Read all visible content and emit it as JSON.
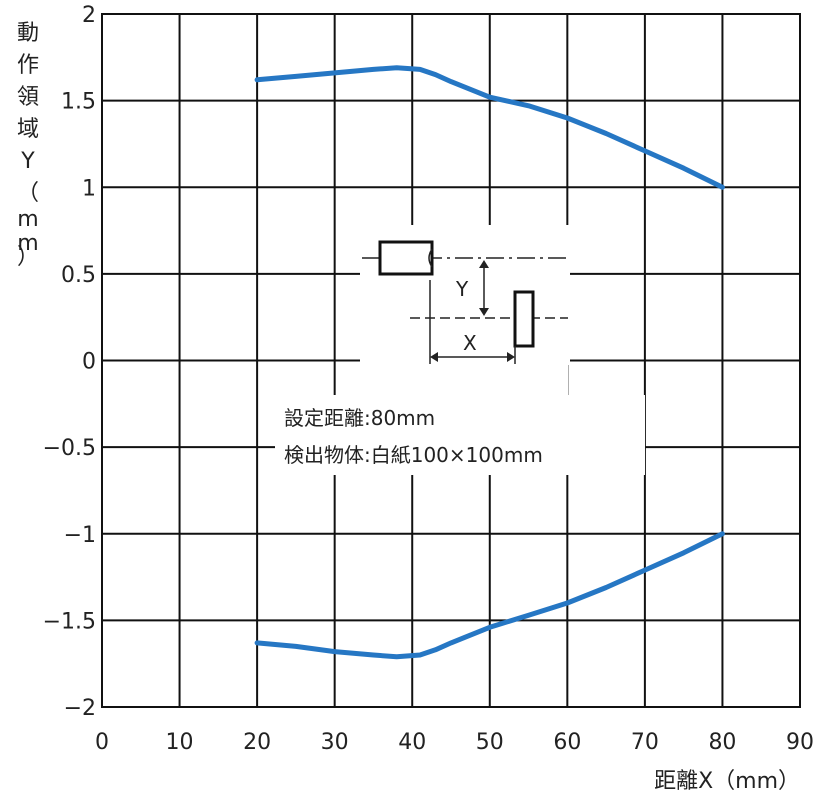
{
  "chart_data": {
    "type": "line",
    "xlabel": "距離X（mm）",
    "ylabel": "動作領域Y（mm）",
    "xlim": [
      0,
      90
    ],
    "ylim": [
      -2,
      2
    ],
    "x_ticks": [
      "0",
      "10",
      "20",
      "30",
      "40",
      "50",
      "60",
      "70",
      "80",
      "90"
    ],
    "y_ticks": [
      "2",
      "1.5",
      "1",
      "0.5",
      "0",
      "−0.5",
      "−1",
      "−1.5",
      "−2"
    ],
    "grid": true,
    "line_color": "#2677c4",
    "series": [
      {
        "x": [
          20,
          25,
          30,
          35,
          38,
          41,
          43,
          45,
          50,
          55,
          60,
          65,
          70,
          75,
          80
        ],
        "y": [
          1.62,
          1.64,
          1.66,
          1.68,
          1.69,
          1.68,
          1.65,
          1.61,
          1.52,
          1.47,
          1.4,
          1.31,
          1.21,
          1.11,
          1.0
        ]
      },
      {
        "x": [
          20,
          25,
          30,
          35,
          38,
          41,
          43,
          45,
          50,
          55,
          60,
          65,
          70,
          75,
          80
        ],
        "y": [
          -1.63,
          -1.65,
          -1.68,
          -1.7,
          -1.71,
          -1.7,
          -1.67,
          -1.63,
          -1.54,
          -1.47,
          -1.4,
          -1.31,
          -1.21,
          -1.11,
          -1.0
        ]
      }
    ],
    "annotations": {
      "line1": "設定距離:80mm",
      "line2": "検出物体:白紙100×100mm",
      "diagram_y": "Y",
      "diagram_x": "X"
    }
  }
}
